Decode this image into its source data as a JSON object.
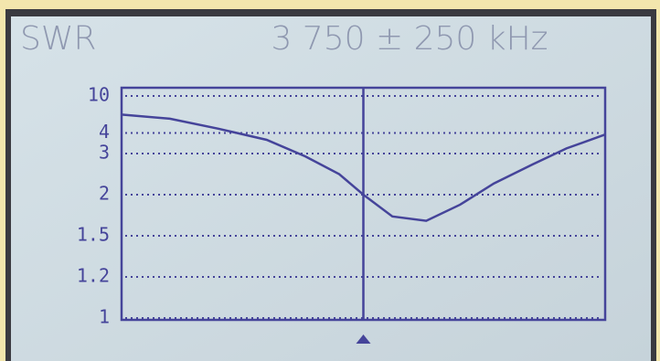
{
  "chart_data": {
    "type": "line",
    "title": "SWR",
    "subtitle": "3 750 ± 250 kHz",
    "x": [
      3500,
      3550,
      3600,
      3650,
      3690,
      3725,
      3750,
      3780,
      3815,
      3850,
      3885,
      3925,
      3960,
      4000
    ],
    "values": [
      5.7,
      5.2,
      4.3,
      3.6,
      2.9,
      2.4,
      2.0,
      1.7,
      1.65,
      1.85,
      2.2,
      2.65,
      3.2,
      3.9
    ],
    "color": "#45449a",
    "xlim": [
      3500,
      4000
    ],
    "ylim": [
      1,
      10
    ],
    "yticks": [
      1,
      1.2,
      1.5,
      2,
      3,
      4,
      10
    ],
    "yscale": "reciprocal",
    "grid": true
  }
}
